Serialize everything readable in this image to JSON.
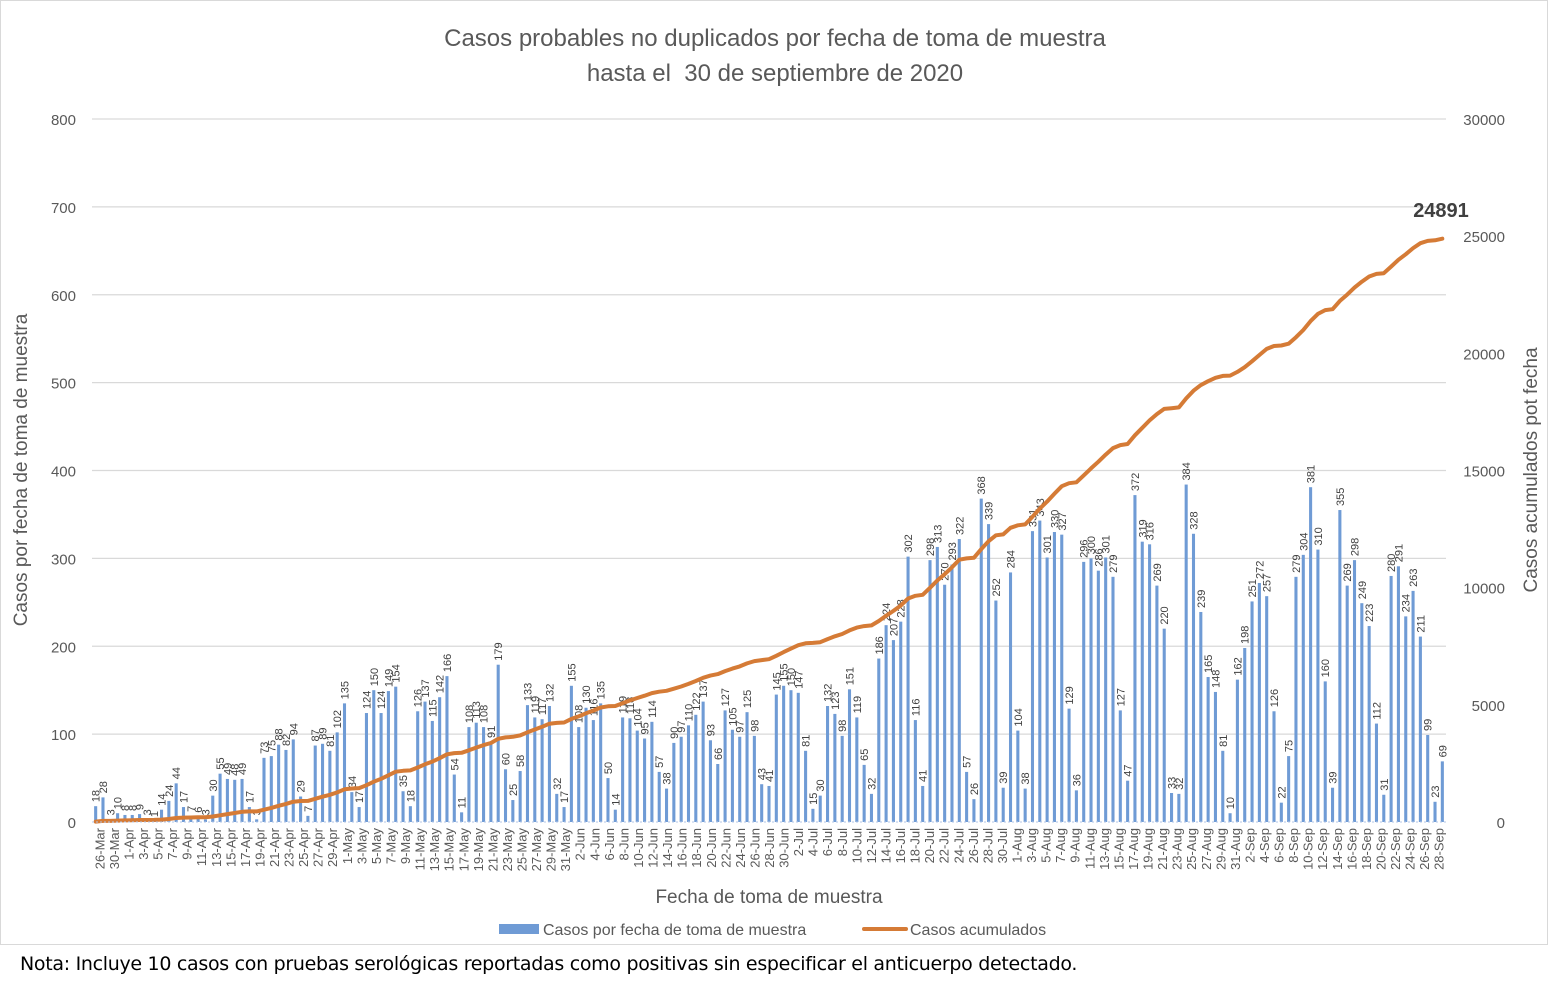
{
  "chart_data": {
    "type": "bar",
    "title": "Casos probables no duplicados por fecha de toma de muestra",
    "subtitle": "hasta el  30 de septiembre de 2020",
    "xlabel": "Fecha de toma de muestra",
    "ylabel": "Casos por fecha de toma de muestra",
    "y2label": "Casos acumulados pot fecha",
    "ylim": [
      0,
      800
    ],
    "y2lim": [
      0,
      30000
    ],
    "yticks": [
      "0",
      "100",
      "200",
      "300",
      "400",
      "500",
      "600",
      "700",
      "800"
    ],
    "y2ticks": [
      "0",
      "5000",
      "10000",
      "15000",
      "20000",
      "25000",
      "30000"
    ],
    "grid": true,
    "legend_position": "bottom",
    "x_tick_labels": [
      "26-Mar",
      "30-Mar",
      "1-Apr",
      "3-Apr",
      "5-Apr",
      "7-Apr",
      "9-Apr",
      "11-Apr",
      "13-Apr",
      "15-Apr",
      "17-Apr",
      "19-Apr",
      "21-Apr",
      "23-Apr",
      "25-Apr",
      "27-Apr",
      "29-Apr",
      "1-May",
      "3-May",
      "5-May",
      "7-May",
      "9-May",
      "11-May",
      "13-May",
      "15-May",
      "17-May",
      "19-May",
      "21-May",
      "23-May",
      "25-May",
      "27-May",
      "29-May",
      "31-May",
      "2-Jun",
      "4-Jun",
      "6-Jun",
      "8-Jun",
      "10-Jun",
      "12-Jun",
      "14-Jun",
      "16-Jun",
      "18-Jun",
      "20-Jun",
      "22-Jun",
      "24-Jun",
      "26-Jun",
      "28-Jun",
      "30-Jun",
      "2-Jul",
      "4-Jul",
      "6-Jul",
      "8-Jul",
      "10-Jul",
      "12-Jul",
      "14-Jul",
      "16-Jul",
      "18-Jul",
      "20-Jul",
      "22-Jul",
      "24-Jul",
      "26-Jul",
      "28-Jul",
      "30-Jul",
      "1-Aug",
      "3-Aug",
      "5-Aug",
      "7-Aug",
      "9-Aug",
      "11-Aug",
      "13-Aug",
      "15-Aug",
      "17-Aug",
      "19-Aug",
      "21-Aug",
      "23-Aug",
      "25-Aug",
      "27-Aug",
      "29-Aug",
      "31-Aug",
      "2-Sep",
      "4-Sep",
      "6-Sep",
      "8-Sep",
      "10-Sep",
      "12-Sep",
      "14-Sep",
      "16-Sep",
      "18-Sep",
      "20-Sep",
      "22-Sep",
      "24-Sep",
      "26-Sep",
      "28-Sep"
    ],
    "series": [
      {
        "name": "Casos por fecha de toma de muestra",
        "type": "bar",
        "color": "#6f9bd5",
        "values": [
          18,
          28,
          3,
          10,
          8,
          8,
          9,
          3,
          1,
          14,
          24,
          44,
          17,
          7,
          6,
          3,
          30,
          55,
          49,
          48,
          49,
          17,
          3,
          73,
          75,
          88,
          82,
          94,
          29,
          7,
          87,
          89,
          81,
          102,
          135,
          34,
          17,
          124,
          150,
          124,
          149,
          154,
          35,
          18,
          126,
          137,
          115,
          142,
          166,
          54,
          11,
          108,
          113,
          108,
          91,
          179,
          60,
          25,
          58,
          133,
          119,
          117,
          132,
          32,
          17,
          155,
          108,
          130,
          116,
          135,
          50,
          14,
          119,
          118,
          104,
          95,
          114,
          57,
          38,
          90,
          97,
          110,
          122,
          137,
          93,
          66,
          127,
          105,
          97,
          125,
          98,
          43,
          41,
          145,
          155,
          150,
          147,
          81,
          15,
          30,
          132,
          123,
          98,
          151,
          119,
          65,
          32,
          186,
          224,
          207,
          228,
          302,
          116,
          41,
          298,
          313,
          270,
          293,
          322,
          57,
          26,
          368,
          339,
          252,
          39,
          284,
          104,
          38,
          331,
          343,
          301,
          330,
          327,
          129,
          36,
          296,
          300,
          286,
          301,
          279,
          127,
          47,
          372,
          319,
          316,
          269,
          220,
          33,
          32,
          384,
          328,
          239,
          165,
          148,
          81,
          10,
          162,
          198,
          251,
          272,
          257,
          126,
          22,
          75,
          279,
          304,
          381,
          310,
          160,
          39,
          355,
          269,
          298,
          249,
          223,
          112,
          31,
          280,
          291,
          234,
          263,
          211,
          99,
          23,
          69
        ]
      },
      {
        "name": "Casos acumulados",
        "type": "line",
        "axis": "right",
        "color": "#d57b36",
        "final_value": 24891
      }
    ],
    "annotation": "24891"
  },
  "note": "Nota: Incluye 10 casos con pruebas serológicas reportadas como positivas sin especificar el anticuerpo detectado."
}
